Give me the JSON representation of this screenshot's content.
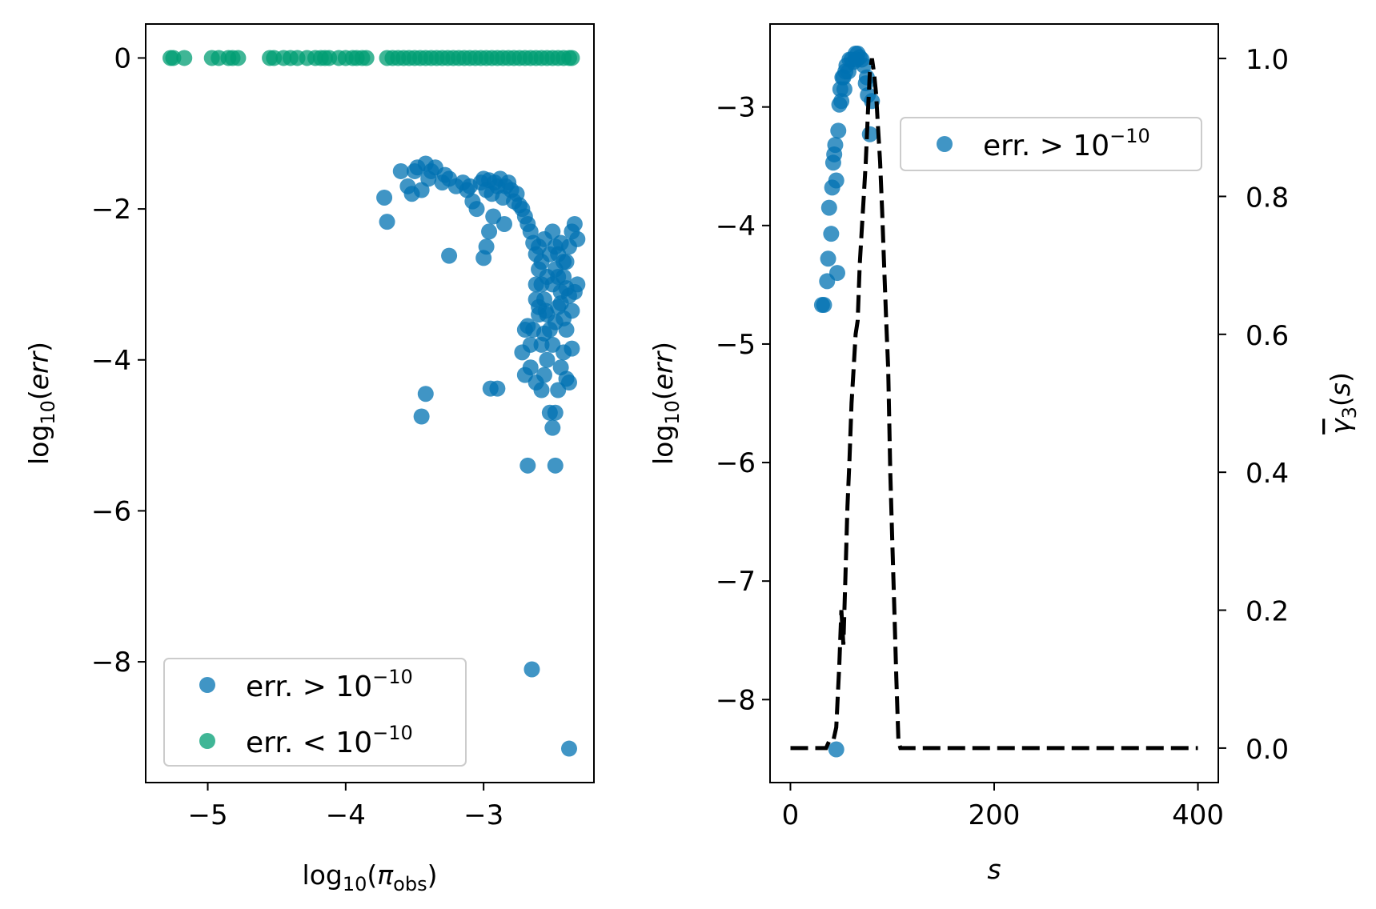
{
  "colors": {
    "err_above": "#0072B2",
    "err_below": "#009E73",
    "gamma_line": "#000000",
    "axes": "#000000",
    "legend_edge": "#cccccc"
  },
  "chart_data": [
    {
      "type": "scatter",
      "xlabel": "log10(π_obs)",
      "ylabel": "log10(err)",
      "xlim": [
        -5.45,
        -2.2
      ],
      "ylim": [
        -9.6,
        0.45
      ],
      "xticks": [
        "−5",
        "−4",
        "−3"
      ],
      "yticks": [
        "0",
        "−2",
        "−4",
        "−6",
        "−8"
      ],
      "grid": false,
      "legend_position": "lower left",
      "series": [
        {
          "name": "err. > 10^−10",
          "label_main": "err. > 10",
          "label_exp": "−10",
          "color": "#0072B2",
          "points": [
            [
              -3.72,
              -1.85
            ],
            [
              -3.7,
              -2.17
            ],
            [
              -3.6,
              -1.5
            ],
            [
              -3.55,
              -1.7
            ],
            [
              -3.52,
              -1.8
            ],
            [
              -3.5,
              -1.5
            ],
            [
              -3.48,
              -1.45
            ],
            [
              -3.45,
              -1.75
            ],
            [
              -3.42,
              -1.4
            ],
            [
              -3.4,
              -1.6
            ],
            [
              -3.38,
              -1.5
            ],
            [
              -3.35,
              -1.45
            ],
            [
              -3.3,
              -1.65
            ],
            [
              -3.28,
              -1.55
            ],
            [
              -3.25,
              -1.6
            ],
            [
              -3.2,
              -1.7
            ],
            [
              -3.15,
              -1.65
            ],
            [
              -3.12,
              -1.75
            ],
            [
              -3.1,
              -1.7
            ],
            [
              -3.08,
              -1.9
            ],
            [
              -3.05,
              -2.0
            ],
            [
              -3.02,
              -1.65
            ],
            [
              -3.0,
              -1.6
            ],
            [
              -2.98,
              -1.75
            ],
            [
              -2.96,
              -1.62
            ],
            [
              -2.94,
              -1.8
            ],
            [
              -2.92,
              -1.65
            ],
            [
              -2.9,
              -1.7
            ],
            [
              -2.88,
              -1.6
            ],
            [
              -2.86,
              -1.85
            ],
            [
              -2.84,
              -1.7
            ],
            [
              -2.82,
              -1.65
            ],
            [
              -2.8,
              -1.75
            ],
            [
              -2.78,
              -1.9
            ],
            [
              -2.76,
              -1.8
            ],
            [
              -2.74,
              -1.95
            ],
            [
              -2.72,
              -2.0
            ],
            [
              -2.7,
              -2.1
            ],
            [
              -2.68,
              -2.2
            ],
            [
              -2.66,
              -2.3
            ],
            [
              -2.64,
              -2.45
            ],
            [
              -2.62,
              -2.6
            ],
            [
              -2.6,
              -2.8
            ],
            [
              -2.58,
              -3.0
            ],
            [
              -2.56,
              -3.2
            ],
            [
              -2.54,
              -3.4
            ],
            [
              -2.52,
              -3.6
            ],
            [
              -2.5,
              -3.8
            ],
            [
              -2.48,
              -3.5
            ],
            [
              -2.46,
              -3.3
            ],
            [
              -2.44,
              -3.1
            ],
            [
              -2.42,
              -2.9
            ],
            [
              -2.4,
              -2.7
            ],
            [
              -2.38,
              -2.5
            ],
            [
              -2.36,
              -2.3
            ],
            [
              -2.34,
              -2.2
            ],
            [
              -2.32,
              -2.4
            ],
            [
              -2.6,
              -2.5
            ],
            [
              -2.58,
              -2.7
            ],
            [
              -2.56,
              -2.4
            ],
            [
              -2.54,
              -2.9
            ],
            [
              -2.52,
              -2.6
            ],
            [
              -2.5,
              -3.0
            ],
            [
              -2.48,
              -2.8
            ],
            [
              -2.46,
              -2.6
            ],
            [
              -2.44,
              -2.45
            ],
            [
              -2.42,
              -2.7
            ],
            [
              -2.4,
              -3.05
            ],
            [
              -2.38,
              -3.15
            ],
            [
              -2.36,
              -3.35
            ],
            [
              -2.34,
              -3.1
            ],
            [
              -2.32,
              -3.0
            ],
            [
              -2.5,
              -2.3
            ],
            [
              -2.48,
              -2.5
            ],
            [
              -2.46,
              -2.9
            ],
            [
              -2.44,
              -3.25
            ],
            [
              -2.42,
              -3.45
            ],
            [
              -2.4,
              -3.6
            ],
            [
              -2.62,
              -3.2
            ],
            [
              -2.6,
              -3.4
            ],
            [
              -2.64,
              -3.6
            ],
            [
              -2.66,
              -3.8
            ],
            [
              -2.68,
              -3.55
            ],
            [
              -2.7,
              -3.6
            ],
            [
              -2.72,
              -3.9
            ],
            [
              -2.7,
              -4.2
            ],
            [
              -2.66,
              -4.1
            ],
            [
              -2.62,
              -4.3
            ],
            [
              -2.58,
              -4.4
            ],
            [
              -2.56,
              -4.2
            ],
            [
              -2.54,
              -4.0
            ],
            [
              -2.52,
              -4.7
            ],
            [
              -2.5,
              -4.9
            ],
            [
              -2.48,
              -4.7
            ],
            [
              -2.46,
              -4.4
            ],
            [
              -2.44,
              -4.1
            ],
            [
              -2.42,
              -3.9
            ],
            [
              -2.4,
              -4.25
            ],
            [
              -2.38,
              -4.3
            ],
            [
              -2.36,
              -3.85
            ],
            [
              -2.56,
              -3.65
            ],
            [
              -2.58,
              -3.8
            ],
            [
              -2.6,
              -3.3
            ],
            [
              -2.62,
              -3.0
            ],
            [
              -2.55,
              -3.35
            ],
            [
              -2.95,
              -4.38
            ],
            [
              -2.9,
              -4.38
            ],
            [
              -3.0,
              -2.65
            ],
            [
              -2.98,
              -2.5
            ],
            [
              -2.96,
              -2.3
            ],
            [
              -2.93,
              -2.1
            ],
            [
              -2.85,
              -2.2
            ],
            [
              -3.25,
              -2.62
            ],
            [
              -3.42,
              -4.45
            ],
            [
              -3.45,
              -4.75
            ],
            [
              -2.68,
              -5.4
            ],
            [
              -2.48,
              -5.4
            ],
            [
              -2.65,
              -8.1
            ],
            [
              -2.38,
              -9.15
            ]
          ]
        },
        {
          "name": "err. < 10^−10",
          "label_main": "err. < 10",
          "label_exp": "−10",
          "color": "#009E73",
          "points": [
            [
              -5.27,
              0
            ],
            [
              -5.25,
              0
            ],
            [
              -5.17,
              0
            ],
            [
              -4.97,
              0
            ],
            [
              -4.92,
              0
            ],
            [
              -4.85,
              0
            ],
            [
              -4.82,
              0
            ],
            [
              -4.78,
              0
            ],
            [
              -4.55,
              0
            ],
            [
              -4.52,
              0
            ],
            [
              -4.45,
              0
            ],
            [
              -4.4,
              0
            ],
            [
              -4.35,
              0
            ],
            [
              -4.28,
              0
            ],
            [
              -4.22,
              0
            ],
            [
              -4.18,
              0
            ],
            [
              -4.15,
              0
            ],
            [
              -4.12,
              0
            ],
            [
              -4.05,
              0
            ],
            [
              -4.0,
              0
            ],
            [
              -3.95,
              0
            ],
            [
              -3.92,
              0
            ],
            [
              -3.88,
              0
            ],
            [
              -3.85,
              0
            ],
            [
              -3.7,
              0
            ],
            [
              -3.66,
              0
            ],
            [
              -3.62,
              0
            ],
            [
              -3.58,
              0
            ],
            [
              -3.54,
              0
            ],
            [
              -3.5,
              0
            ],
            [
              -3.46,
              0
            ],
            [
              -3.42,
              0
            ],
            [
              -3.38,
              0
            ],
            [
              -3.34,
              0
            ],
            [
              -3.3,
              0
            ],
            [
              -3.26,
              0
            ],
            [
              -3.22,
              0
            ],
            [
              -3.18,
              0
            ],
            [
              -3.14,
              0
            ],
            [
              -3.1,
              0
            ],
            [
              -3.06,
              0
            ],
            [
              -3.02,
              0
            ],
            [
              -2.98,
              0
            ],
            [
              -2.94,
              0
            ],
            [
              -2.9,
              0
            ],
            [
              -2.86,
              0
            ],
            [
              -2.82,
              0
            ],
            [
              -2.78,
              0
            ],
            [
              -2.74,
              0
            ],
            [
              -2.7,
              0
            ],
            [
              -2.66,
              0
            ],
            [
              -2.62,
              0
            ],
            [
              -2.58,
              0
            ],
            [
              -2.54,
              0
            ],
            [
              -2.5,
              0
            ],
            [
              -2.46,
              0
            ],
            [
              -2.42,
              0
            ],
            [
              -2.38,
              0
            ],
            [
              -2.36,
              0
            ]
          ]
        }
      ]
    },
    {
      "type": "scatter",
      "xlabel": "s",
      "ylabel": "log10(err)",
      "y2label": "γ̄3(s)",
      "xlim": [
        -20,
        420
      ],
      "ylim": [
        -8.7,
        -2.3
      ],
      "y2lim": [
        -0.05,
        1.05
      ],
      "xticks": [
        "0",
        "200",
        "400"
      ],
      "yticks": [
        "−3",
        "−4",
        "−5",
        "−6",
        "−7",
        "−8"
      ],
      "y2ticks": [
        "0.0",
        "0.2",
        "0.4",
        "0.6",
        "0.8",
        "1.0"
      ],
      "grid": false,
      "legend_position": "upper right",
      "series": [
        {
          "name": "err. > 10^−10",
          "label_main": "err. > 10",
          "label_exp": "−10",
          "color": "#0072B2",
          "points": [
            [
              31,
              -4.67
            ],
            [
              33,
              -4.67
            ],
            [
              36,
              -4.47
            ],
            [
              37,
              -4.28
            ],
            [
              38,
              -3.85
            ],
            [
              40,
              -4.07
            ],
            [
              41,
              -3.68
            ],
            [
              42,
              -3.47
            ],
            [
              43,
              -3.4
            ],
            [
              44,
              -3.32
            ],
            [
              45,
              -3.62
            ],
            [
              46,
              -4.4
            ],
            [
              47,
              -3.2
            ],
            [
              48,
              -2.98
            ],
            [
              49,
              -2.85
            ],
            [
              50,
              -2.95
            ],
            [
              51,
              -2.75
            ],
            [
              52,
              -2.75
            ],
            [
              53,
              -2.85
            ],
            [
              54,
              -2.7
            ],
            [
              55,
              -2.65
            ],
            [
              57,
              -2.7
            ],
            [
              58,
              -2.6
            ],
            [
              60,
              -2.6
            ],
            [
              62,
              -2.62
            ],
            [
              64,
              -2.55
            ],
            [
              65,
              -2.6
            ],
            [
              66,
              -2.55
            ],
            [
              68,
              -2.58
            ],
            [
              70,
              -2.6
            ],
            [
              72,
              -2.65
            ],
            [
              74,
              -2.8
            ],
            [
              75,
              -2.75
            ],
            [
              76,
              -2.9
            ],
            [
              78,
              -3.23
            ],
            [
              80,
              -2.95
            ],
            [
              45,
              -8.42
            ]
          ]
        },
        {
          "name": "γ̄3",
          "type": "line",
          "dash": true,
          "color": "#000000",
          "points": [
            [
              0,
              0.0
            ],
            [
              35,
              0.0
            ],
            [
              38,
              0.01
            ],
            [
              42,
              0.01
            ],
            [
              45,
              0.03
            ],
            [
              48,
              0.12
            ],
            [
              50,
              0.2
            ],
            [
              52,
              0.15
            ],
            [
              54,
              0.25
            ],
            [
              56,
              0.35
            ],
            [
              58,
              0.42
            ],
            [
              60,
              0.5
            ],
            [
              62,
              0.55
            ],
            [
              64,
              0.6
            ],
            [
              66,
              0.62
            ],
            [
              68,
              0.7
            ],
            [
              70,
              0.75
            ],
            [
              72,
              0.8
            ],
            [
              74,
              0.85
            ],
            [
              76,
              0.92
            ],
            [
              78,
              0.98
            ],
            [
              80,
              1.0
            ],
            [
              82,
              0.98
            ],
            [
              84,
              0.95
            ],
            [
              86,
              0.9
            ],
            [
              88,
              0.85
            ],
            [
              90,
              0.78
            ],
            [
              92,
              0.7
            ],
            [
              94,
              0.62
            ],
            [
              96,
              0.55
            ],
            [
              98,
              0.4
            ],
            [
              100,
              0.3
            ],
            [
              102,
              0.2
            ],
            [
              104,
              0.1
            ],
            [
              106,
              0.01
            ],
            [
              108,
              0.0
            ],
            [
              400,
              0.0
            ]
          ]
        }
      ]
    }
  ]
}
